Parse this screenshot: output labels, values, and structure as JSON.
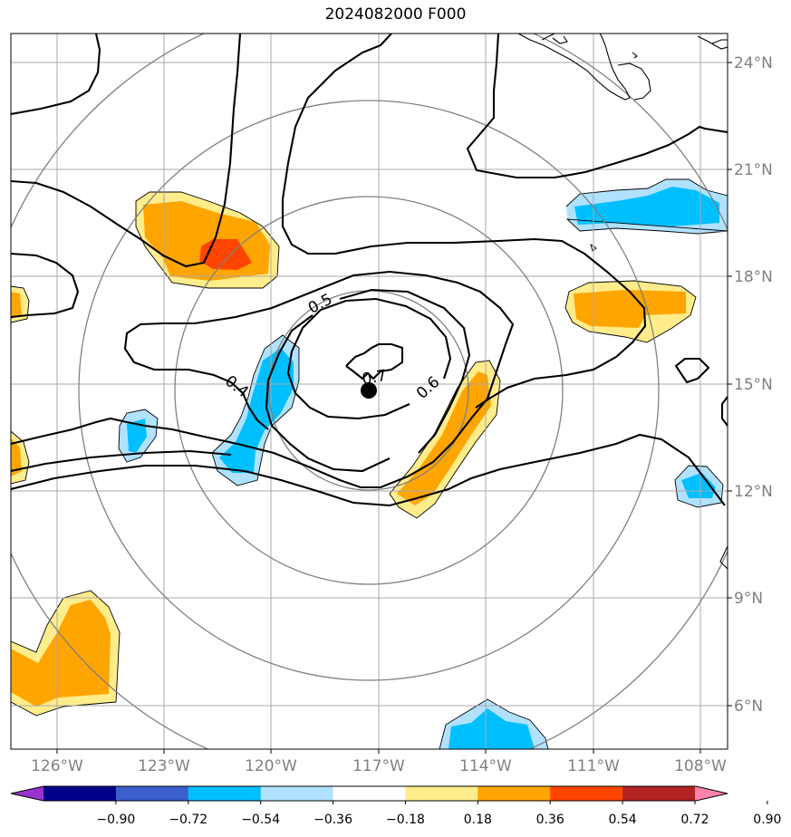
{
  "title": "2024082000 F000",
  "map": {
    "lon_labels": [
      "126°W",
      "123°W",
      "120°W",
      "117°W",
      "114°W",
      "111°W",
      "108°W"
    ],
    "lat_labels": [
      "24°N",
      "21°N",
      "18°N",
      "15°N",
      "12°N",
      "9°N",
      "6°N"
    ],
    "center": {
      "lon": "117.3°W",
      "lat": "14.8°N"
    },
    "contour_labels": [
      "0.4",
      "0.5",
      "0.6",
      "0.7"
    ]
  },
  "colorbar": {
    "tick_labels": [
      "−0.90",
      "−0.72",
      "−0.54",
      "−0.36",
      "−0.18",
      "0.18",
      "0.36",
      "0.54",
      "0.72",
      "0.90"
    ],
    "colors": [
      "#9a32cd",
      "#00008b",
      "#3a5fcd",
      "#00bfff",
      "#b0e2ff",
      "#ffffff",
      "#ffec8b",
      "#ffa500",
      "#ff4500",
      "#b22222",
      "#ff82ab"
    ]
  }
}
